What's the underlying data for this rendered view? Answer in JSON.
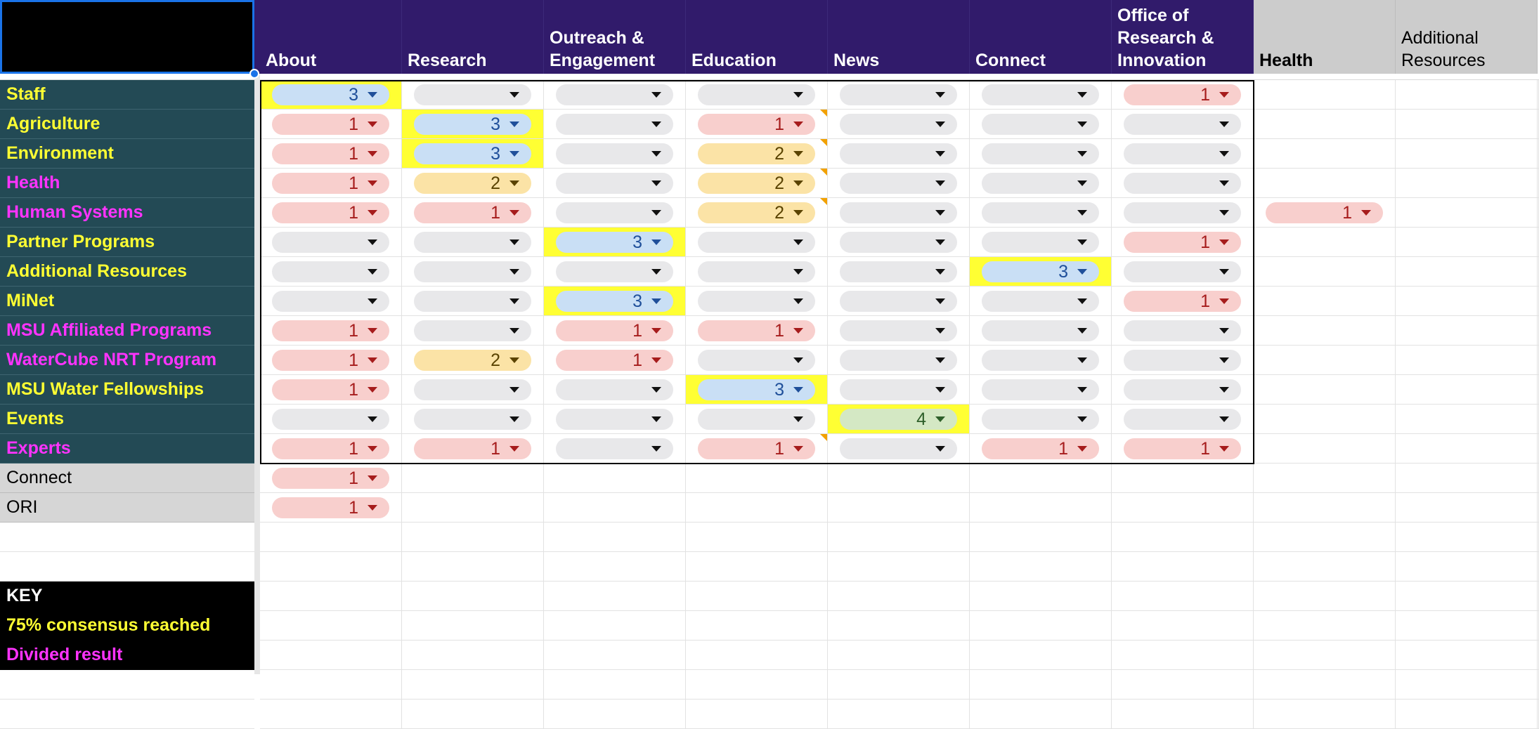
{
  "corner_cell": "",
  "columns": [
    {
      "label": "About",
      "style": "purple"
    },
    {
      "label": "Research",
      "style": "purple"
    },
    {
      "label": "Outreach &\nEngagement",
      "style": "purple"
    },
    {
      "label": "Education",
      "style": "purple"
    },
    {
      "label": "News",
      "style": "purple"
    },
    {
      "label": "Connect",
      "style": "purple"
    },
    {
      "label": "Office of\nResearch &\nInnovation",
      "style": "purple"
    },
    {
      "label": "Health",
      "style": "gray-bold"
    },
    {
      "label": "Additional\nResources",
      "style": "gray"
    }
  ],
  "rows": [
    {
      "label": "Staff",
      "color": "#ffff33",
      "values": [
        3,
        null,
        null,
        null,
        null,
        null,
        1
      ],
      "highlight": [
        0
      ],
      "notes": []
    },
    {
      "label": "Agriculture",
      "color": "#ffff33",
      "values": [
        1,
        3,
        null,
        1,
        null,
        null,
        null
      ],
      "highlight": [
        1
      ],
      "notes": [
        3
      ]
    },
    {
      "label": "Environment",
      "color": "#ffff33",
      "values": [
        1,
        3,
        null,
        2,
        null,
        null,
        null
      ],
      "highlight": [
        1
      ],
      "notes": [
        3
      ]
    },
    {
      "label": "Health",
      "color": "#ff33ff",
      "values": [
        1,
        2,
        null,
        2,
        null,
        null,
        null
      ],
      "highlight": [],
      "notes": [
        3
      ]
    },
    {
      "label": "Human Systems",
      "color": "#ff33ff",
      "values": [
        1,
        1,
        null,
        2,
        null,
        null,
        null,
        1
      ],
      "highlight": [],
      "notes": [
        3
      ]
    },
    {
      "label": "Partner Programs",
      "color": "#ffff33",
      "values": [
        null,
        null,
        3,
        null,
        null,
        null,
        1
      ],
      "highlight": [
        2
      ],
      "notes": []
    },
    {
      "label": "Additional Resources",
      "color": "#ffff33",
      "values": [
        null,
        null,
        null,
        null,
        null,
        3,
        null
      ],
      "highlight": [
        5
      ],
      "notes": []
    },
    {
      "label": "MiNet",
      "color": "#ffff33",
      "values": [
        null,
        null,
        3,
        null,
        null,
        null,
        1
      ],
      "highlight": [
        2
      ],
      "notes": []
    },
    {
      "label": "MSU Affiliated Programs",
      "color": "#ff33ff",
      "values": [
        1,
        null,
        1,
        1,
        null,
        null,
        null
      ],
      "highlight": [],
      "notes": []
    },
    {
      "label": "WaterCube NRT Program",
      "color": "#ff33ff",
      "values": [
        1,
        2,
        1,
        null,
        null,
        null,
        null
      ],
      "highlight": [],
      "notes": []
    },
    {
      "label": "MSU Water Fellowships",
      "color": "#ffff33",
      "values": [
        1,
        null,
        null,
        3,
        null,
        null,
        null
      ],
      "highlight": [
        3
      ],
      "notes": []
    },
    {
      "label": "Events",
      "color": "#ffff33",
      "values": [
        null,
        null,
        null,
        null,
        4,
        null,
        null
      ],
      "highlight": [
        4
      ],
      "notes": []
    },
    {
      "label": "Experts",
      "color": "#ff33ff",
      "values": [
        1,
        1,
        null,
        1,
        null,
        1,
        1
      ],
      "highlight": [],
      "notes": [
        3
      ]
    },
    {
      "label": "Connect",
      "color": "#000000",
      "style": "gray",
      "values": [
        1
      ],
      "highlight": [],
      "notes": []
    },
    {
      "label": "ORI",
      "color": "#000000",
      "style": "gray",
      "values": [
        1
      ],
      "highlight": [],
      "notes": []
    },
    {
      "label": "",
      "style": "blank",
      "values": [],
      "highlight": [],
      "notes": []
    },
    {
      "label": "",
      "style": "blank",
      "values": [],
      "highlight": [],
      "notes": []
    },
    {
      "label": "KEY",
      "color": "#ffffff",
      "style": "key",
      "values": [],
      "highlight": [],
      "notes": []
    },
    {
      "label": "75% consensus reached",
      "color": "#ffff33",
      "style": "key",
      "values": [],
      "highlight": [],
      "notes": []
    },
    {
      "label": "Divided result",
      "color": "#ff33ff",
      "style": "key",
      "values": [],
      "highlight": [],
      "notes": []
    }
  ],
  "chip_colors": {
    "0": "#e8e8ea",
    "1": "#f8cfcd",
    "2": "#fbe3a6",
    "3": "#c9dff5",
    "4": "#d4e8c4"
  },
  "icons": {
    "dropdown": "dropdown-arrow-icon",
    "note": "comment-note-icon"
  }
}
